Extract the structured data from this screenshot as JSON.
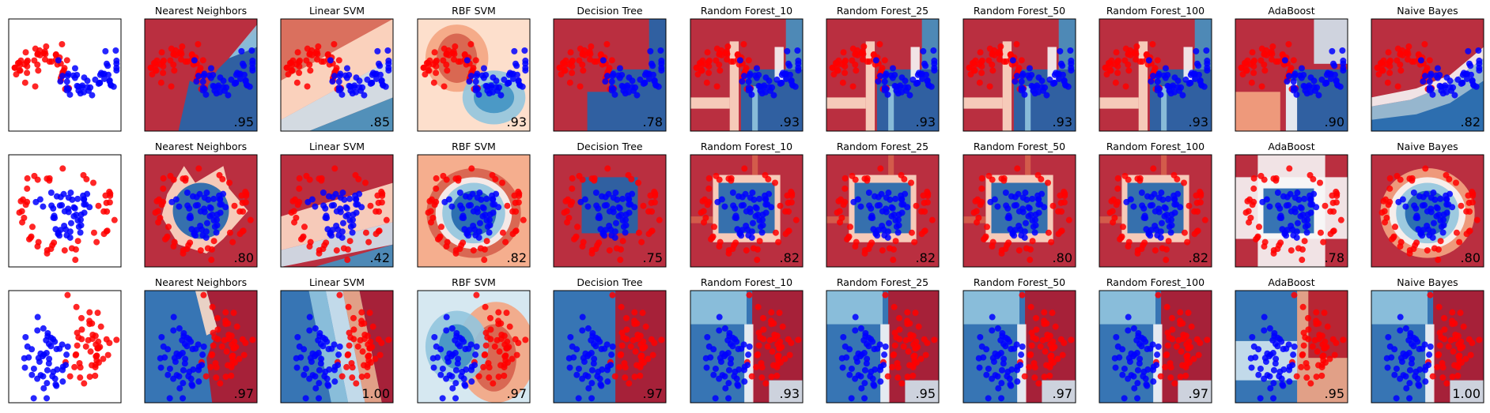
{
  "chart_data": [
    {
      "type": "scatter",
      "row": 0,
      "col": 0,
      "title": "",
      "score": "",
      "dataset": "moons",
      "shows_decision_boundary": false
    },
    {
      "type": "scatter",
      "row": 0,
      "col": 1,
      "title": "Nearest Neighbors",
      "score": ".95",
      "dataset": "moons",
      "shows_decision_boundary": true
    },
    {
      "type": "scatter",
      "row": 0,
      "col": 2,
      "title": "Linear SVM",
      "score": ".85",
      "dataset": "moons",
      "shows_decision_boundary": true
    },
    {
      "type": "scatter",
      "row": 0,
      "col": 3,
      "title": "RBF SVM",
      "score": ".93",
      "dataset": "moons",
      "shows_decision_boundary": true
    },
    {
      "type": "scatter",
      "row": 0,
      "col": 4,
      "title": "Decision Tree",
      "score": ".78",
      "dataset": "moons",
      "shows_decision_boundary": true
    },
    {
      "type": "scatter",
      "row": 0,
      "col": 5,
      "title": "Random Forest_10",
      "score": ".93",
      "dataset": "moons",
      "shows_decision_boundary": true
    },
    {
      "type": "scatter",
      "row": 0,
      "col": 6,
      "title": "Random Forest_25",
      "score": ".93",
      "dataset": "moons",
      "shows_decision_boundary": true
    },
    {
      "type": "scatter",
      "row": 0,
      "col": 7,
      "title": "Random Forest_50",
      "score": ".93",
      "dataset": "moons",
      "shows_decision_boundary": true
    },
    {
      "type": "scatter",
      "row": 0,
      "col": 8,
      "title": "Random Forest_100",
      "score": ".93",
      "dataset": "moons",
      "shows_decision_boundary": true
    },
    {
      "type": "scatter",
      "row": 0,
      "col": 9,
      "title": "AdaBoost",
      "score": ".90",
      "dataset": "moons",
      "shows_decision_boundary": true
    },
    {
      "type": "scatter",
      "row": 0,
      "col": 10,
      "title": "Naive Bayes",
      "score": ".82",
      "dataset": "moons",
      "shows_decision_boundary": true
    },
    {
      "type": "scatter",
      "row": 1,
      "col": 0,
      "title": "",
      "score": "",
      "dataset": "circles",
      "shows_decision_boundary": false
    },
    {
      "type": "scatter",
      "row": 1,
      "col": 1,
      "title": "Nearest Neighbors",
      "score": ".80",
      "dataset": "circles",
      "shows_decision_boundary": true
    },
    {
      "type": "scatter",
      "row": 1,
      "col": 2,
      "title": "Linear SVM",
      "score": ".42",
      "dataset": "circles",
      "shows_decision_boundary": true
    },
    {
      "type": "scatter",
      "row": 1,
      "col": 3,
      "title": "RBF SVM",
      "score": ".82",
      "dataset": "circles",
      "shows_decision_boundary": true
    },
    {
      "type": "scatter",
      "row": 1,
      "col": 4,
      "title": "Decision Tree",
      "score": ".75",
      "dataset": "circles",
      "shows_decision_boundary": true
    },
    {
      "type": "scatter",
      "row": 1,
      "col": 5,
      "title": "Random Forest_10",
      "score": ".82",
      "dataset": "circles",
      "shows_decision_boundary": true
    },
    {
      "type": "scatter",
      "row": 1,
      "col": 6,
      "title": "Random Forest_25",
      "score": ".82",
      "dataset": "circles",
      "shows_decision_boundary": true
    },
    {
      "type": "scatter",
      "row": 1,
      "col": 7,
      "title": "Random Forest_50",
      "score": ".80",
      "dataset": "circles",
      "shows_decision_boundary": true
    },
    {
      "type": "scatter",
      "row": 1,
      "col": 8,
      "title": "Random Forest_100",
      "score": ".82",
      "dataset": "circles",
      "shows_decision_boundary": true
    },
    {
      "type": "scatter",
      "row": 1,
      "col": 9,
      "title": "AdaBoost",
      "score": ".78",
      "dataset": "circles",
      "shows_decision_boundary": true
    },
    {
      "type": "scatter",
      "row": 1,
      "col": 10,
      "title": "Naive Bayes",
      "score": ".80",
      "dataset": "circles",
      "shows_decision_boundary": true
    },
    {
      "type": "scatter",
      "row": 2,
      "col": 0,
      "title": "",
      "score": "",
      "dataset": "linear",
      "shows_decision_boundary": false
    },
    {
      "type": "scatter",
      "row": 2,
      "col": 1,
      "title": "Nearest Neighbors",
      "score": ".97",
      "dataset": "linear",
      "shows_decision_boundary": true
    },
    {
      "type": "scatter",
      "row": 2,
      "col": 2,
      "title": "Linear SVM",
      "score": "1.00",
      "dataset": "linear",
      "shows_decision_boundary": true
    },
    {
      "type": "scatter",
      "row": 2,
      "col": 3,
      "title": "RBF SVM",
      "score": ".97",
      "dataset": "linear",
      "shows_decision_boundary": true
    },
    {
      "type": "scatter",
      "row": 2,
      "col": 4,
      "title": "Decision Tree",
      "score": ".97",
      "dataset": "linear",
      "shows_decision_boundary": true
    },
    {
      "type": "scatter",
      "row": 2,
      "col": 5,
      "title": "Random Forest_10",
      "score": ".93",
      "dataset": "linear",
      "shows_decision_boundary": true
    },
    {
      "type": "scatter",
      "row": 2,
      "col": 6,
      "title": "Random Forest_25",
      "score": ".95",
      "dataset": "linear",
      "shows_decision_boundary": true
    },
    {
      "type": "scatter",
      "row": 2,
      "col": 7,
      "title": "Random Forest_50",
      "score": ".97",
      "dataset": "linear",
      "shows_decision_boundary": true
    },
    {
      "type": "scatter",
      "row": 2,
      "col": 8,
      "title": "Random Forest_100",
      "score": ".97",
      "dataset": "linear",
      "shows_decision_boundary": true
    },
    {
      "type": "scatter",
      "row": 2,
      "col": 9,
      "title": "AdaBoost",
      "score": ".95",
      "dataset": "linear",
      "shows_decision_boundary": true
    },
    {
      "type": "scatter",
      "row": 2,
      "col": 10,
      "title": "Naive Bayes",
      "score": "1.00",
      "dataset": "linear",
      "shows_decision_boundary": true
    }
  ],
  "colors": {
    "class_red": "#ff0000",
    "class_blue": "#0000ff",
    "region_red": "#b2182b",
    "region_blue": "#2166ac",
    "neutral": "#f7f7f7"
  }
}
